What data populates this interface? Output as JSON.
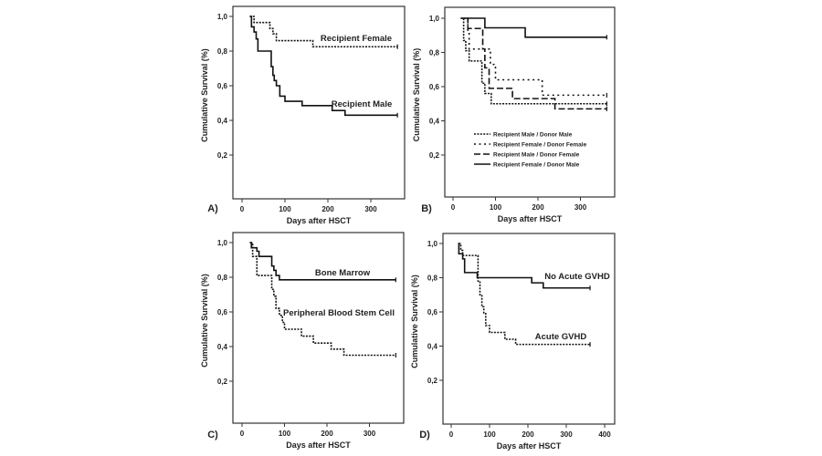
{
  "chart_data": [
    {
      "panel": "A)",
      "type": "line",
      "subtype": "kaplan-meier",
      "xlabel": "Days after HSCT",
      "ylabel": "Cumulative Survival (%)",
      "xticks": [
        "0",
        "100",
        "200",
        "300"
      ],
      "yticks": [
        "0,2",
        "0,4",
        "0,6",
        "0,8",
        "1,0"
      ],
      "xlim": [
        -20,
        370
      ],
      "ylim": [
        0.0,
        1.02
      ],
      "series": [
        {
          "name": "Recipient Female",
          "style": "dotted",
          "x": [
            18,
            28,
            65,
            72,
            80,
            85,
            165,
            362
          ],
          "y": [
            1.0,
            0.965,
            0.93,
            0.9,
            0.86,
            0.86,
            0.825,
            0.825
          ]
        },
        {
          "name": "Recipient Male",
          "style": "solid",
          "x": [
            18,
            22,
            28,
            33,
            37,
            65,
            68,
            72,
            75,
            80,
            88,
            100,
            140,
            210,
            240,
            362
          ],
          "y": [
            1.0,
            0.94,
            0.91,
            0.87,
            0.8,
            0.8,
            0.71,
            0.66,
            0.63,
            0.6,
            0.54,
            0.51,
            0.485,
            0.457,
            0.43,
            0.43
          ]
        }
      ],
      "annotations": [
        "Recipient Female",
        "Recipient Male"
      ]
    },
    {
      "panel": "B)",
      "type": "line",
      "subtype": "kaplan-meier",
      "xlabel": "Days after HSCT",
      "ylabel": "Cumulative Survival (%)",
      "xticks": [
        "0",
        "100",
        "200",
        "300"
      ],
      "yticks": [
        "0,2",
        "0,4",
        "0,6",
        "0,8",
        "1,0"
      ],
      "xlim": [
        -20,
        370
      ],
      "ylim": [
        0.0,
        1.02
      ],
      "legend_position": "center-left",
      "series": [
        {
          "name": "Recipient Male / Donor Male",
          "style": "dotted",
          "x": [
            18,
            25,
            30,
            38,
            65,
            68,
            75,
            85,
            90,
            362
          ],
          "y": [
            1.0,
            0.87,
            0.81,
            0.75,
            0.75,
            0.62,
            0.56,
            0.56,
            0.5,
            0.5
          ]
        },
        {
          "name": "Recipient Female / Donor Female",
          "style": "spaced-dots",
          "x": [
            25,
            35,
            38,
            80,
            88,
            100,
            210,
            362
          ],
          "y": [
            1.0,
            0.91,
            0.82,
            0.82,
            0.73,
            0.64,
            0.55,
            0.55
          ]
        },
        {
          "name": "Recipient Male / Donor Female",
          "style": "dashed",
          "x": [
            32,
            35,
            65,
            70,
            75,
            85,
            140,
            240,
            362
          ],
          "y": [
            1.0,
            0.94,
            0.94,
            0.82,
            0.71,
            0.59,
            0.53,
            0.47,
            0.47
          ]
        },
        {
          "name": "Recipient Female / Donor Male",
          "style": "solid",
          "x": [
            18,
            75,
            170,
            362
          ],
          "y": [
            1.0,
            0.944,
            0.889,
            0.889
          ]
        }
      ]
    },
    {
      "panel": "C)",
      "type": "line",
      "subtype": "kaplan-meier",
      "xlabel": "Days after HSCT",
      "ylabel": "Cumulative Survival (%)",
      "xticks": [
        "0",
        "100",
        "200",
        "300"
      ],
      "yticks": [
        "0,2",
        "0,4",
        "0,6",
        "0,8",
        "1,0"
      ],
      "xlim": [
        -20,
        370
      ],
      "ylim": [
        0.0,
        1.02
      ],
      "series": [
        {
          "name": "Bone Marrow",
          "style": "solid",
          "x": [
            18,
            22,
            28,
            35,
            40,
            65,
            70,
            75,
            80,
            88,
            362
          ],
          "y": [
            1.0,
            0.97,
            0.97,
            0.95,
            0.92,
            0.92,
            0.865,
            0.84,
            0.81,
            0.785,
            0.785
          ]
        },
        {
          "name": "Peripheral Blood Stem Cell",
          "style": "dotted",
          "x": [
            20,
            25,
            35,
            65,
            70,
            75,
            80,
            88,
            95,
            100,
            140,
            168,
            210,
            240,
            362
          ],
          "y": [
            1.0,
            0.92,
            0.81,
            0.81,
            0.73,
            0.69,
            0.62,
            0.58,
            0.54,
            0.5,
            0.46,
            0.42,
            0.385,
            0.35,
            0.35
          ]
        }
      ],
      "annotations": [
        "Bone Marrow",
        "Peripheral Blood Stem Cell"
      ]
    },
    {
      "panel": "D)",
      "type": "line",
      "subtype": "kaplan-meier",
      "xlabel": "Days after HSCT",
      "ylabel": "Cumulative Survival (%)",
      "xticks": [
        "0",
        "100",
        "200",
        "300",
        "400"
      ],
      "yticks": [
        "0,2",
        "0,4",
        "0,6",
        "0,8",
        "1,0"
      ],
      "xlim": [
        -20,
        420
      ],
      "ylim": [
        0.0,
        1.02
      ],
      "series": [
        {
          "name": "No Acute GVHD",
          "style": "solid",
          "x": [
            18,
            20,
            30,
            35,
            65,
            68,
            210,
            240,
            362
          ],
          "y": [
            1.0,
            0.94,
            0.91,
            0.83,
            0.83,
            0.8,
            0.77,
            0.74,
            0.74
          ]
        },
        {
          "name": "Acute GVHD",
          "style": "dotted",
          "x": [
            20,
            25,
            30,
            65,
            70,
            75,
            80,
            85,
            90,
            100,
            140,
            168,
            362
          ],
          "y": [
            1.0,
            0.96,
            0.93,
            0.93,
            0.78,
            0.7,
            0.63,
            0.59,
            0.52,
            0.48,
            0.44,
            0.41,
            0.41
          ]
        }
      ],
      "annotations": [
        "No Acute GVHD",
        "Acute GVHD"
      ]
    }
  ]
}
